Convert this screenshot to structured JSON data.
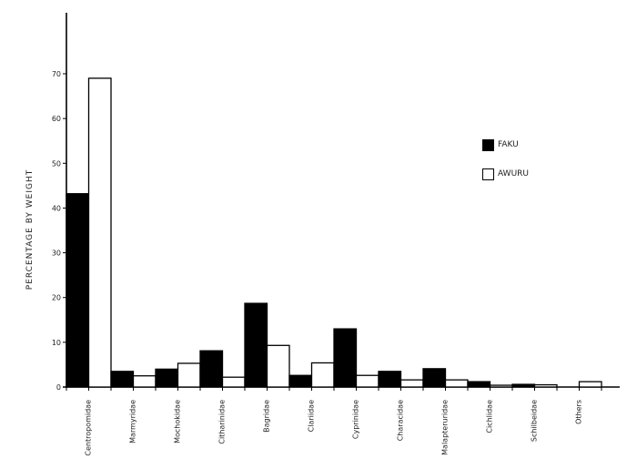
{
  "chart_data": {
    "type": "bar",
    "title": "",
    "xlabel": "",
    "ylabel": "PERCENTAGE BY WEIGHT",
    "ylim": [
      0,
      70
    ],
    "yticks": [
      0,
      10,
      20,
      30,
      40,
      50,
      60,
      70
    ],
    "grid": false,
    "legend_position": "upper right",
    "categories": [
      "Centropomidae",
      "Marmyridae",
      "Mochokidae",
      "Citharinidae",
      "Bagridae",
      "Clariidae",
      "Cyprinidae",
      "Characidae",
      "Malapteruridae",
      "Cichlidae",
      "Schilbeidae",
      "Others"
    ],
    "series": [
      {
        "name": "FAKU",
        "color": "#000000",
        "values": [
          43.2,
          3.5,
          4.0,
          8.1,
          18.7,
          2.6,
          13.0,
          3.5,
          4.1,
          1.2,
          0.6,
          0.0
        ]
      },
      {
        "name": "AWURU",
        "color": "#ffffff",
        "values": [
          69.0,
          2.5,
          5.3,
          2.2,
          9.3,
          5.4,
          2.6,
          1.6,
          1.6,
          0.4,
          0.5,
          1.2
        ]
      }
    ]
  },
  "legend": {
    "items": [
      {
        "label": "FAKU"
      },
      {
        "label": "AWURU"
      }
    ]
  }
}
